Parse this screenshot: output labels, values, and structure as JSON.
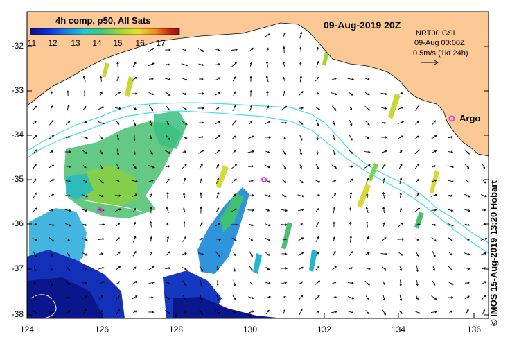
{
  "map": {
    "title": "09-Aug-2019 20Z",
    "colorbar_label": "4h comp, p50, All Sats",
    "colorbar_ticks": [
      "11",
      "12",
      "13",
      "14",
      "15",
      "16",
      "17"
    ],
    "colorbar_colors": [
      "#08108c",
      "#1030d8",
      "#1a7ee0",
      "#20c8d0",
      "#40c878",
      "#98d838",
      "#e8e030",
      "#f08a20",
      "#d02418",
      "#8c1010"
    ],
    "product": "NRT00 GSL",
    "valid_time": "09-Aug 00:00Z",
    "scale_label": "0.5m/s (1kt 24h)",
    "argo_label": "Argo",
    "credit": "© IMOS 15-Aug-2019 13:20 Hobart",
    "y_ticks": [
      "-32",
      "-33",
      "-34",
      "-35",
      "-36",
      "-37",
      "-38"
    ],
    "x_ticks": [
      "124",
      "126",
      "128",
      "130",
      "132",
      "134",
      "136"
    ],
    "colors": {
      "land": "#fbc896",
      "coast_line": "#000000",
      "contour": "#40e0ec",
      "argo_marker": "#e040e0"
    }
  }
}
